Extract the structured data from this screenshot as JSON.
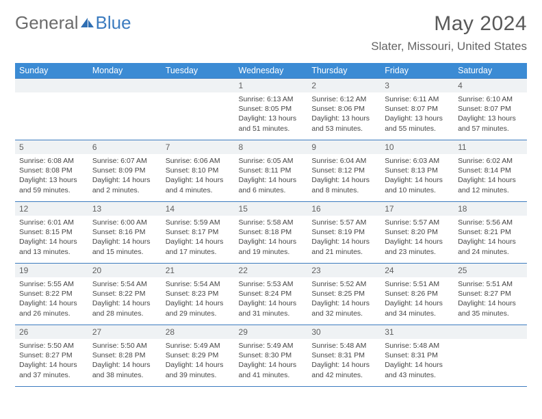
{
  "logo": {
    "text1": "General",
    "text2": "Blue"
  },
  "title": "May 2024",
  "location": "Slater, Missouri, United States",
  "dayHeaders": [
    "Sunday",
    "Monday",
    "Tuesday",
    "Wednesday",
    "Thursday",
    "Friday",
    "Saturday"
  ],
  "colors": {
    "headerBg": "#3b8bd4",
    "headerText": "#ffffff",
    "cellBorder": "#3b7bbf",
    "dayNumBg": "#eff2f4",
    "logoGray": "#6b6b6b",
    "logoBlue": "#3b7bbf"
  },
  "weeks": [
    [
      null,
      null,
      null,
      {
        "n": "1",
        "sr": "6:13 AM",
        "ss": "8:05 PM",
        "dl": "13 hours and 51 minutes."
      },
      {
        "n": "2",
        "sr": "6:12 AM",
        "ss": "8:06 PM",
        "dl": "13 hours and 53 minutes."
      },
      {
        "n": "3",
        "sr": "6:11 AM",
        "ss": "8:07 PM",
        "dl": "13 hours and 55 minutes."
      },
      {
        "n": "4",
        "sr": "6:10 AM",
        "ss": "8:07 PM",
        "dl": "13 hours and 57 minutes."
      }
    ],
    [
      {
        "n": "5",
        "sr": "6:08 AM",
        "ss": "8:08 PM",
        "dl": "13 hours and 59 minutes."
      },
      {
        "n": "6",
        "sr": "6:07 AM",
        "ss": "8:09 PM",
        "dl": "14 hours and 2 minutes."
      },
      {
        "n": "7",
        "sr": "6:06 AM",
        "ss": "8:10 PM",
        "dl": "14 hours and 4 minutes."
      },
      {
        "n": "8",
        "sr": "6:05 AM",
        "ss": "8:11 PM",
        "dl": "14 hours and 6 minutes."
      },
      {
        "n": "9",
        "sr": "6:04 AM",
        "ss": "8:12 PM",
        "dl": "14 hours and 8 minutes."
      },
      {
        "n": "10",
        "sr": "6:03 AM",
        "ss": "8:13 PM",
        "dl": "14 hours and 10 minutes."
      },
      {
        "n": "11",
        "sr": "6:02 AM",
        "ss": "8:14 PM",
        "dl": "14 hours and 12 minutes."
      }
    ],
    [
      {
        "n": "12",
        "sr": "6:01 AM",
        "ss": "8:15 PM",
        "dl": "14 hours and 13 minutes."
      },
      {
        "n": "13",
        "sr": "6:00 AM",
        "ss": "8:16 PM",
        "dl": "14 hours and 15 minutes."
      },
      {
        "n": "14",
        "sr": "5:59 AM",
        "ss": "8:17 PM",
        "dl": "14 hours and 17 minutes."
      },
      {
        "n": "15",
        "sr": "5:58 AM",
        "ss": "8:18 PM",
        "dl": "14 hours and 19 minutes."
      },
      {
        "n": "16",
        "sr": "5:57 AM",
        "ss": "8:19 PM",
        "dl": "14 hours and 21 minutes."
      },
      {
        "n": "17",
        "sr": "5:57 AM",
        "ss": "8:20 PM",
        "dl": "14 hours and 23 minutes."
      },
      {
        "n": "18",
        "sr": "5:56 AM",
        "ss": "8:21 PM",
        "dl": "14 hours and 24 minutes."
      }
    ],
    [
      {
        "n": "19",
        "sr": "5:55 AM",
        "ss": "8:22 PM",
        "dl": "14 hours and 26 minutes."
      },
      {
        "n": "20",
        "sr": "5:54 AM",
        "ss": "8:22 PM",
        "dl": "14 hours and 28 minutes."
      },
      {
        "n": "21",
        "sr": "5:54 AM",
        "ss": "8:23 PM",
        "dl": "14 hours and 29 minutes."
      },
      {
        "n": "22",
        "sr": "5:53 AM",
        "ss": "8:24 PM",
        "dl": "14 hours and 31 minutes."
      },
      {
        "n": "23",
        "sr": "5:52 AM",
        "ss": "8:25 PM",
        "dl": "14 hours and 32 minutes."
      },
      {
        "n": "24",
        "sr": "5:51 AM",
        "ss": "8:26 PM",
        "dl": "14 hours and 34 minutes."
      },
      {
        "n": "25",
        "sr": "5:51 AM",
        "ss": "8:27 PM",
        "dl": "14 hours and 35 minutes."
      }
    ],
    [
      {
        "n": "26",
        "sr": "5:50 AM",
        "ss": "8:27 PM",
        "dl": "14 hours and 37 minutes."
      },
      {
        "n": "27",
        "sr": "5:50 AM",
        "ss": "8:28 PM",
        "dl": "14 hours and 38 minutes."
      },
      {
        "n": "28",
        "sr": "5:49 AM",
        "ss": "8:29 PM",
        "dl": "14 hours and 39 minutes."
      },
      {
        "n": "29",
        "sr": "5:49 AM",
        "ss": "8:30 PM",
        "dl": "14 hours and 41 minutes."
      },
      {
        "n": "30",
        "sr": "5:48 AM",
        "ss": "8:31 PM",
        "dl": "14 hours and 42 minutes."
      },
      {
        "n": "31",
        "sr": "5:48 AM",
        "ss": "8:31 PM",
        "dl": "14 hours and 43 minutes."
      },
      null
    ]
  ]
}
